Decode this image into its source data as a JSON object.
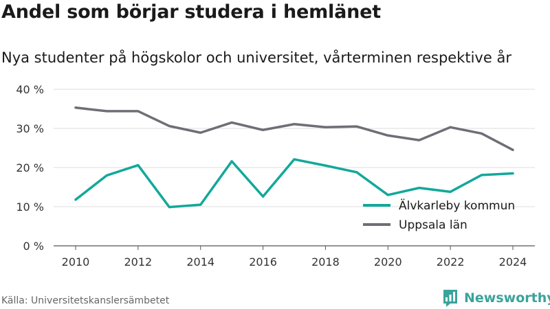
{
  "header": {
    "title": "Andel som börjar studera i hemlänet",
    "subtitle": "Nya studenter på högskolor och universitet, vårterminen respektive år"
  },
  "footer": {
    "source": "Källa: Universitetskanslersämbetet",
    "brand": "Newsworthy"
  },
  "colors": {
    "alvkarleby": "#12a89a",
    "uppsala": "#6e6e76",
    "grid": "#dcdcdc",
    "brand": "#3aa39b"
  },
  "chart_data": {
    "type": "line",
    "x": [
      2010,
      2011,
      2012,
      2013,
      2014,
      2015,
      2016,
      2017,
      2018,
      2019,
      2020,
      2021,
      2022,
      2023,
      2024
    ],
    "x_ticks": [
      "2010",
      "2012",
      "2014",
      "2016",
      "2018",
      "2020",
      "2022",
      "2024"
    ],
    "y_ticks": [
      "0 %",
      "10 %",
      "20 %",
      "30 %",
      "40 %"
    ],
    "ylim": [
      0,
      40
    ],
    "grid": true,
    "legend_position": "bottom-right",
    "series": [
      {
        "name": "Älvkarleby kommun",
        "color": "#12a89a",
        "values": [
          11.8,
          18.0,
          20.6,
          9.9,
          10.5,
          21.6,
          12.6,
          22.1,
          20.5,
          18.8,
          13.0,
          14.8,
          13.8,
          18.1,
          18.5
        ]
      },
      {
        "name": "Uppsala län",
        "color": "#6e6e76",
        "values": [
          35.3,
          34.4,
          34.4,
          30.6,
          28.9,
          31.5,
          29.6,
          31.1,
          30.3,
          30.5,
          28.2,
          27.0,
          30.3,
          28.7,
          24.5
        ]
      }
    ]
  }
}
